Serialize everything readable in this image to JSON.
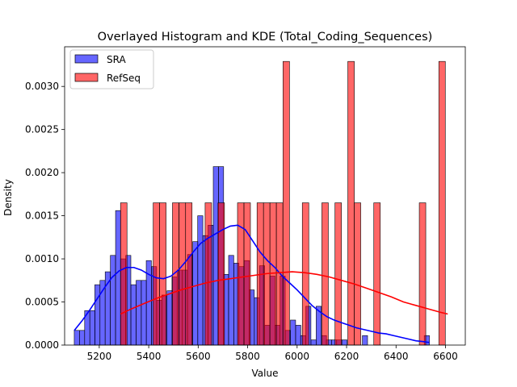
{
  "chart_data": {
    "type": "bar",
    "title": "Overlayed Histogram and KDE (Total_Coding_Sequences)",
    "xlabel": "Value",
    "ylabel": "Density",
    "xlim": [
      5060,
      6680
    ],
    "ylim": [
      0,
      0.00346
    ],
    "xticks": [
      5200,
      5400,
      5600,
      5800,
      6000,
      6200,
      6400,
      6600
    ],
    "yticks": [
      0.0,
      0.0005,
      0.001,
      0.0015,
      0.002,
      0.0025,
      0.003
    ],
    "ytick_labels": [
      "0.0000",
      "0.0005",
      "0.0010",
      "0.0015",
      "0.0020",
      "0.0025",
      "0.0030"
    ],
    "grid": false,
    "legend": {
      "position": "top-left",
      "entries": [
        {
          "label": "SRA",
          "color": "#0000ff"
        },
        {
          "label": "RefSeq",
          "color": "#ff0000"
        }
      ]
    },
    "series": [
      {
        "name": "SRA",
        "color": "#0000ff",
        "bin_width": 20.8,
        "bins_start": [
          5099,
          5120,
          5141,
          5162,
          5182,
          5203,
          5224,
          5245,
          5266,
          5286,
          5307,
          5328,
          5349,
          5370,
          5390,
          5411,
          5432,
          5453,
          5474,
          5494,
          5515,
          5536,
          5557,
          5578,
          5598,
          5619,
          5640,
          5661,
          5682,
          5702,
          5723,
          5744,
          5765,
          5786,
          5806,
          5827,
          5848,
          5869,
          5890,
          5910,
          5931,
          5952,
          5973,
          5994,
          6014,
          6035,
          6056,
          6077,
          6098,
          6118,
          6139,
          6160,
          6181,
          6202,
          6222,
          6243,
          6264,
          6285,
          6306,
          6326,
          6347,
          6368,
          6389,
          6410,
          6430,
          6451,
          6472,
          6493,
          6514
        ],
        "values": [
          0.00017,
          0.00017,
          0.0004,
          0.0004,
          0.0007,
          0.00075,
          0.00085,
          0.00104,
          0.00156,
          0.001,
          0.00104,
          0.0007,
          0.00075,
          0.00075,
          0.00098,
          0.00091,
          0.00052,
          0.00058,
          0.00063,
          0.00079,
          0.00087,
          0.00087,
          0.00105,
          0.0012,
          0.0015,
          0.00127,
          0.00139,
          0.00207,
          0.00207,
          0.00082,
          0.00104,
          0.00095,
          0.00091,
          0.00098,
          0.00064,
          0.00055,
          0.00092,
          0.00023,
          0.0008,
          0.00023,
          0.0008,
          0.00017,
          0.00029,
          0.00023,
          0.00011,
          0.00045,
          6e-05,
          0.00045,
          0.00011,
          6e-05,
          6e-05,
          6e-05,
          6e-05,
          0.0,
          0.0,
          0.0,
          0.00011,
          0.0,
          0.0,
          0.0,
          0.0,
          0.0,
          0.0,
          0.0,
          0.0,
          0.0,
          0.0,
          0.0,
          0.00011
        ]
      },
      {
        "name": "RefSeq",
        "color": "#ff0000",
        "bin_width": 26.2,
        "bins_start": [
          5286,
          5313,
          5339,
          5365,
          5391,
          5418,
          5444,
          5470,
          5496,
          5523,
          5549,
          5575,
          5601,
          5628,
          5654,
          5680,
          5706,
          5733,
          5759,
          5785,
          5811,
          5838,
          5864,
          5890,
          5916,
          5943,
          5969,
          5995,
          6021,
          6048,
          6074,
          6100,
          6126,
          6153,
          6179,
          6205,
          6231,
          6258,
          6284,
          6310,
          6336,
          6363,
          6389,
          6415,
          6441,
          6468,
          6494,
          6520,
          6546,
          6573,
          6599
        ],
        "values": [
          0.00165,
          0.0,
          0.0,
          0.0,
          0.0,
          0.00165,
          0.00165,
          0.0,
          0.00165,
          0.00165,
          0.00165,
          0.0,
          0.0,
          0.00165,
          0.0,
          0.00165,
          0.0,
          0.0,
          0.00165,
          0.00165,
          0.0,
          0.00165,
          0.00165,
          0.00165,
          0.00165,
          0.00329,
          0.0,
          0.0,
          0.00165,
          0.0,
          0.0,
          0.00165,
          0.0,
          0.00165,
          0.0,
          0.00329,
          0.00165,
          0.0,
          0.0,
          0.00165,
          0.0,
          0.0,
          0.0,
          0.0,
          0.0,
          0.0,
          0.00165,
          0.0,
          0.0,
          0.00329,
          0.0
        ]
      }
    ],
    "kde": [
      {
        "name": "SRA",
        "color": "#0000ff",
        "x": [
          5099,
          5130,
          5160,
          5190,
          5220,
          5250,
          5280,
          5310,
          5340,
          5370,
          5400,
          5430,
          5460,
          5490,
          5520,
          5550,
          5580,
          5610,
          5640,
          5670,
          5700,
          5730,
          5760,
          5790,
          5820,
          5850,
          5880,
          5910,
          5940,
          5970,
          6000,
          6030,
          6060,
          6090,
          6120,
          6150,
          6180,
          6210,
          6240,
          6270,
          6300,
          6330,
          6360,
          6390,
          6420,
          6450,
          6480,
          6510,
          6535
        ],
        "y": [
          0.00017,
          0.00028,
          0.0004,
          0.00053,
          0.00066,
          0.00078,
          0.00086,
          0.0009,
          0.0009,
          0.00087,
          0.00082,
          0.00078,
          0.00077,
          0.0008,
          0.00087,
          0.00097,
          0.00108,
          0.00118,
          0.00124,
          0.00129,
          0.00134,
          0.00138,
          0.00139,
          0.00134,
          0.00121,
          0.00108,
          0.00098,
          0.0009,
          0.0008,
          0.00072,
          0.00064,
          0.00055,
          0.00046,
          0.00039,
          0.00033,
          0.00029,
          0.00026,
          0.00023,
          0.0002,
          0.00018,
          0.00016,
          0.00014,
          0.00013,
          0.00011,
          9e-05,
          7e-05,
          5e-05,
          4e-05,
          3e-05
        ]
      },
      {
        "name": "RefSeq",
        "color": "#ff0000",
        "x": [
          5286,
          5330,
          5380,
          5430,
          5480,
          5530,
          5580,
          5630,
          5680,
          5730,
          5780,
          5830,
          5880,
          5930,
          5980,
          6030,
          6080,
          6130,
          6180,
          6230,
          6280,
          6330,
          6380,
          6430,
          6480,
          6530,
          6580,
          6609
        ],
        "y": [
          0.00036,
          0.00042,
          0.00048,
          0.00054,
          0.00059,
          0.00064,
          0.00068,
          0.00072,
          0.00075,
          0.00077,
          0.00079,
          0.00081,
          0.00083,
          0.00084,
          0.00085,
          0.00084,
          0.00082,
          0.00079,
          0.00075,
          0.00071,
          0.00066,
          0.00061,
          0.00056,
          0.0005,
          0.00046,
          0.00042,
          0.00038,
          0.00036
        ]
      }
    ]
  }
}
